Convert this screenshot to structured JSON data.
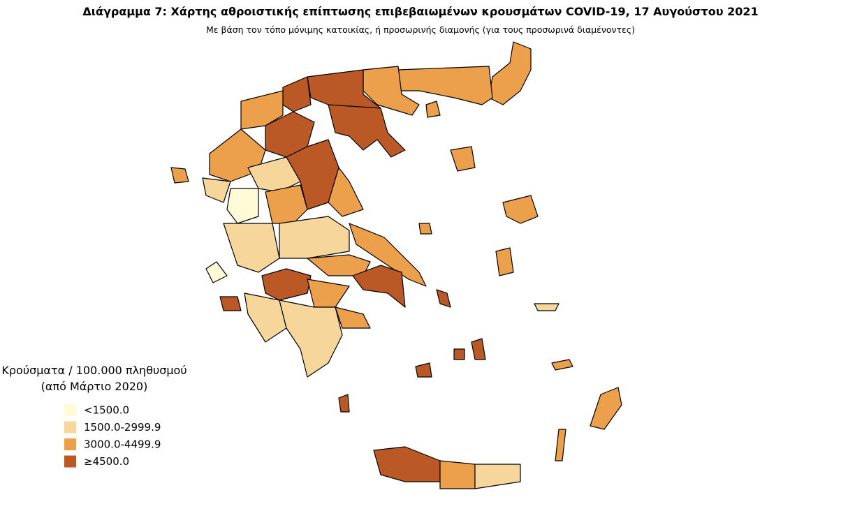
{
  "title": "Διάγραμμα 7: Χάρτης αθροιστικής επίπτωσης επιβεβαιωμένων κρουσμάτων COVID-19, 17 Αυγούστου 2021",
  "subtitle": "Με βάση τον τόπο μόνιμης κατοικίας, ή προσωρινής διαμονής (για τους προσωρινά διαμένοντες)",
  "legend": {
    "title_lines": [
      "Κρούσματα / 100.000 πληθυσμού",
      "(από Μάρτιο 2020)"
    ],
    "items": [
      {
        "label": "<1500.0",
        "color": "#fefbd6"
      },
      {
        "label": "1500.0-2999.9",
        "color": "#f6d69a"
      },
      {
        "label": "3000.0-4499.9",
        "color": "#eca04c"
      },
      {
        "label": "≥4500.0",
        "color": "#bb5926"
      }
    ]
  }
}
